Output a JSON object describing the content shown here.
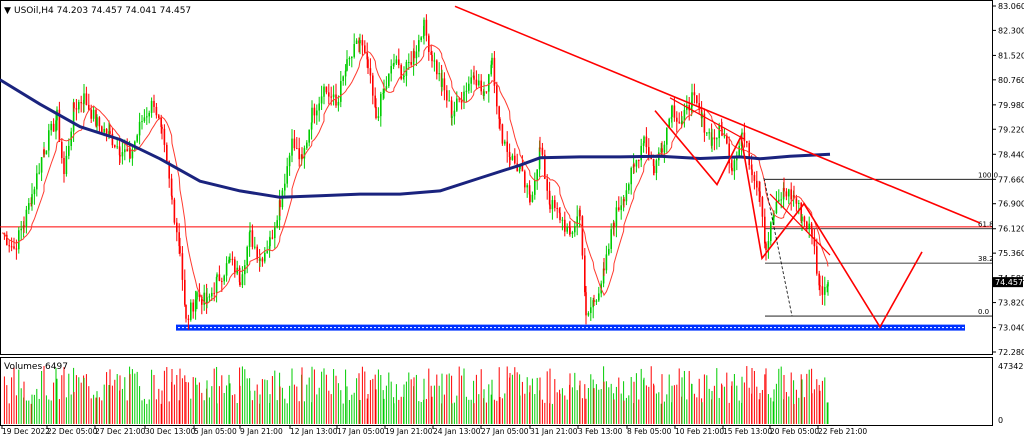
{
  "chart_data": [
    {
      "type": "candlestick",
      "title": "USOil,H4  74.203 74.457 74.041 74.457",
      "symbol": "USOil,H4",
      "ohlc_last": [
        74.203,
        74.457,
        74.041,
        74.457
      ],
      "current_price_label": "74.457",
      "ylim": [
        72.28,
        83.06
      ],
      "yticks": [
        "83.060",
        "82.300",
        "81.520",
        "80.760",
        "79.980",
        "79.220",
        "78.440",
        "77.660",
        "76.900",
        "76.120",
        "75.360",
        "74.580",
        "73.820",
        "73.040",
        "72.280"
      ],
      "yticks_values": [
        83.06,
        82.3,
        81.52,
        80.76,
        79.98,
        79.22,
        78.44,
        77.66,
        76.9,
        76.12,
        75.36,
        74.58,
        73.82,
        73.04,
        72.28
      ],
      "xticks": [
        "19 Dec 2022",
        "22 Dec 05:00",
        "27 Dec 21:00",
        "30 Dec 13:00",
        "5 Jan 05:00",
        "9 Jan 21:00",
        "12 Jan 13:00",
        "17 Jan 05:00",
        "19 Jan 21:00",
        "24 Jan 13:00",
        "27 Jan 05:00",
        "31 Jan 21:00",
        "3 Feb 13:00",
        "8 Feb 05:00",
        "10 Feb 21:00",
        "15 Feb 13:00",
        "20 Feb 05:00",
        "22 Feb 21:00"
      ],
      "fib_levels": [
        {
          "label": "100.0",
          "value": 77.66
        },
        {
          "label": "61.8",
          "value": 76.12
        },
        {
          "label": "38.2",
          "value": 75.05
        },
        {
          "label": "0.0",
          "value": 73.4
        }
      ],
      "support_zone_value": 73.04,
      "horizontal_red_line_value": 76.18,
      "series_keypoints": {
        "close_path": [
          [
            0,
            76.0
          ],
          [
            12,
            75.5
          ],
          [
            22,
            76.3
          ],
          [
            30,
            77.2
          ],
          [
            42,
            78.6
          ],
          [
            55,
            79.6
          ],
          [
            62,
            77.8
          ],
          [
            72,
            79.9
          ],
          [
            82,
            80.2
          ],
          [
            95,
            79.4
          ],
          [
            108,
            79.0
          ],
          [
            118,
            78.6
          ],
          [
            128,
            78.4
          ],
          [
            140,
            79.5
          ],
          [
            152,
            80.1
          ],
          [
            160,
            79.0
          ],
          [
            170,
            77.0
          ],
          [
            178,
            75.5
          ],
          [
            184,
            73.2
          ],
          [
            195,
            74.1
          ],
          [
            205,
            73.8
          ],
          [
            215,
            74.5
          ],
          [
            228,
            75.1
          ],
          [
            238,
            74.6
          ],
          [
            248,
            75.9
          ],
          [
            258,
            75.2
          ],
          [
            268,
            75.7
          ],
          [
            278,
            77.0
          ],
          [
            290,
            78.8
          ],
          [
            300,
            78.2
          ],
          [
            310,
            79.7
          ],
          [
            322,
            80.5
          ],
          [
            334,
            80.0
          ],
          [
            345,
            81.2
          ],
          [
            358,
            82.0
          ],
          [
            366,
            81.1
          ],
          [
            374,
            79.6
          ],
          [
            382,
            80.4
          ],
          [
            392,
            81.3
          ],
          [
            402,
            80.9
          ],
          [
            412,
            81.6
          ],
          [
            422,
            82.4
          ],
          [
            430,
            81.5
          ],
          [
            440,
            80.6
          ],
          [
            450,
            79.7
          ],
          [
            462,
            80.4
          ],
          [
            472,
            81.0
          ],
          [
            482,
            80.2
          ],
          [
            490,
            81.5
          ],
          [
            498,
            79.2
          ],
          [
            508,
            78.4
          ],
          [
            518,
            77.9
          ],
          [
            528,
            77.0
          ],
          [
            538,
            78.6
          ],
          [
            548,
            76.9
          ],
          [
            558,
            76.5
          ],
          [
            568,
            75.9
          ],
          [
            578,
            76.7
          ],
          [
            584,
            73.3
          ],
          [
            592,
            73.9
          ],
          [
            602,
            74.7
          ],
          [
            612,
            76.4
          ],
          [
            622,
            77.2
          ],
          [
            632,
            78.0
          ],
          [
            642,
            79.0
          ],
          [
            652,
            78.0
          ],
          [
            660,
            78.7
          ],
          [
            670,
            79.9
          ],
          [
            680,
            79.4
          ],
          [
            690,
            80.2
          ],
          [
            700,
            79.5
          ],
          [
            710,
            78.9
          ],
          [
            720,
            79.2
          ],
          [
            730,
            78.1
          ],
          [
            740,
            79.1
          ],
          [
            750,
            78.0
          ],
          [
            758,
            77.3
          ],
          [
            764,
            75.5
          ],
          [
            772,
            76.6
          ],
          [
            782,
            77.3
          ],
          [
            792,
            77.1
          ],
          [
            800,
            76.5
          ],
          [
            810,
            76.0
          ],
          [
            818,
            74.2
          ],
          [
            826,
            74.457
          ]
        ],
        "ma_blue": [
          [
            0,
            80.76
          ],
          [
            40,
            80.0
          ],
          [
            80,
            79.3
          ],
          [
            120,
            78.9
          ],
          [
            160,
            78.3
          ],
          [
            200,
            77.6
          ],
          [
            240,
            77.3
          ],
          [
            280,
            77.1
          ],
          [
            320,
            77.15
          ],
          [
            360,
            77.2
          ],
          [
            400,
            77.2
          ],
          [
            440,
            77.3
          ],
          [
            480,
            77.7
          ],
          [
            520,
            78.1
          ],
          [
            540,
            78.33
          ],
          [
            580,
            78.36
          ],
          [
            620,
            78.36
          ],
          [
            660,
            78.38
          ],
          [
            700,
            78.31
          ],
          [
            740,
            78.36
          ],
          [
            760,
            78.3
          ],
          [
            790,
            78.38
          ],
          [
            830,
            78.44
          ]
        ]
      },
      "drawings": {
        "trendline_from": [
          "27 Jan 05:00",
          83.05
        ],
        "trendline_to": [
          "22 Feb 21:00",
          76.3
        ],
        "projection_points": [
          [
            655,
            79.8
          ],
          [
            717,
            77.5
          ],
          [
            741,
            79.0
          ],
          [
            762,
            75.2
          ],
          [
            804,
            76.9
          ],
          [
            880,
            73.06
          ],
          [
            922,
            75.4
          ]
        ],
        "dashed_line": [
          [
            764,
            77.7
          ],
          [
            792,
            73.4
          ]
        ]
      }
    },
    {
      "type": "bar",
      "title": "Volumes 6497",
      "yticks": [
        "47342",
        "0"
      ],
      "yticks_values": [
        47342,
        0
      ],
      "ylim": [
        0,
        47342
      ]
    }
  ],
  "colors": {
    "bull_candle": "#00cc00",
    "bear_candle": "#ff0000",
    "ma_fast": "#ff3b30",
    "ma_slow": "#1a237e",
    "trendline": "#ff0000",
    "support_zone": "#0033ff",
    "grid_text": "#000000",
    "price_badge": "#000000"
  }
}
